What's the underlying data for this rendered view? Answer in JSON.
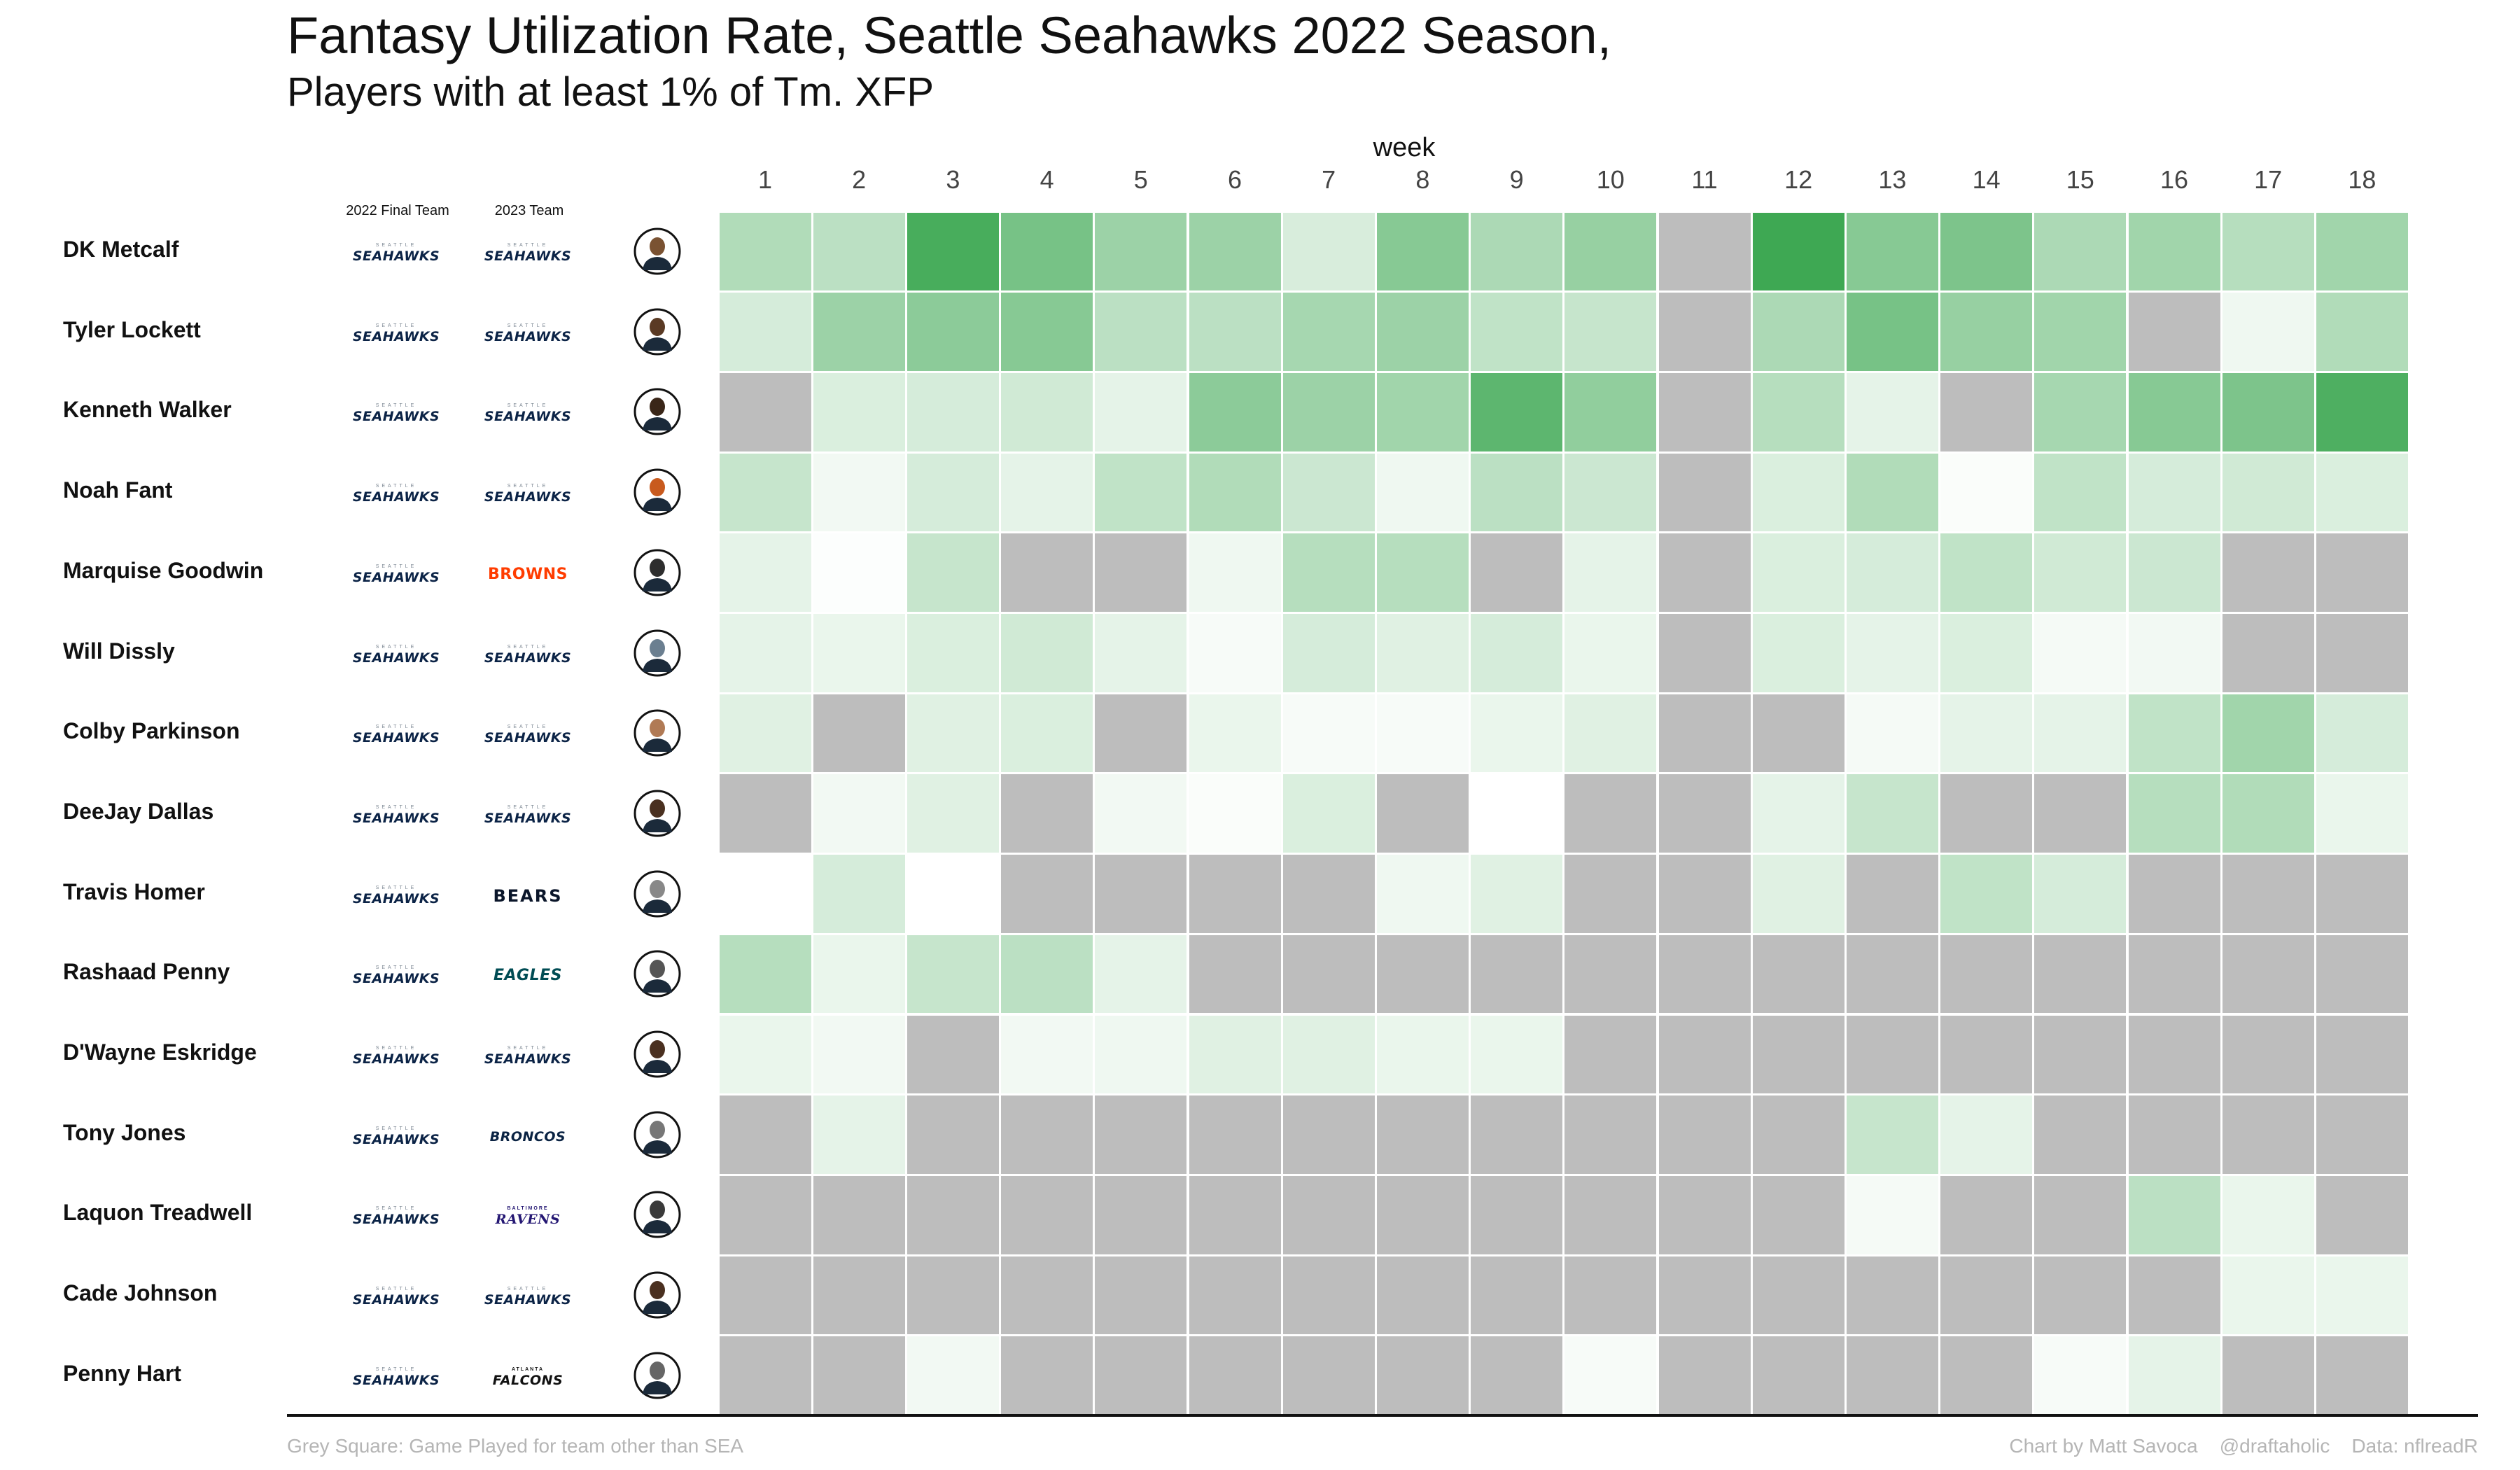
{
  "title": "Fantasy Utilization Rate, Seattle Seahawks 2022 Season,",
  "subtitle": "Players with at least 1% of Tm. XFP",
  "columns": {
    "final_team": "2022 Final Team",
    "team_2023": "2023 Team"
  },
  "footer": {
    "left": "Grey Square: Game Played for team other than SEA",
    "credit": "Chart by Matt Savoca",
    "handle": "@draftaholic",
    "source": "Data: nflreadR"
  },
  "colors": {
    "missing": "#bdbdbd",
    "low": "#ffffff",
    "high": "#3ea853"
  },
  "team_logos": {
    "SEA": {
      "small": "SEATTLE",
      "main": "SEAHAWKS",
      "color": "#0b2346"
    },
    "CLE": {
      "small": "",
      "main": "BROWNS",
      "color": "#ff3c00"
    },
    "CHI": {
      "small": "",
      "main": "BEARS",
      "color": "#0b162a"
    },
    "PHI": {
      "small": "",
      "main": "EAGLES",
      "color": "#004c54"
    },
    "DEN": {
      "small": "",
      "main": "BRONCOS",
      "color": "#0a2343"
    },
    "BAL": {
      "small": "BALTIMORE",
      "main": "RAVENS",
      "color": "#241773"
    },
    "ATL": {
      "small": "ATLANTA",
      "main": "FALCONS",
      "color": "#111111"
    }
  },
  "chart_data": {
    "type": "heatmap",
    "x_label": "week",
    "weeks": [
      "1",
      "2",
      "3",
      "4",
      "5",
      "6",
      "7",
      "8",
      "9",
      "10",
      "11",
      "12",
      "13",
      "14",
      "15",
      "16",
      "17",
      "18"
    ],
    "note": "Grey Square: Game Played for team other than SEA",
    "players": [
      {
        "name": "DK Metcalf",
        "final_team": "SEA",
        "team_2023": "SEA",
        "headshot_color": "#7a5232",
        "values": [
          0.3,
          0.26,
          0.7,
          0.52,
          0.38,
          0.38,
          0.15,
          0.46,
          0.32,
          0.4,
          null,
          0.74,
          0.46,
          0.5,
          0.32,
          0.36,
          0.28,
          0.36
        ]
      },
      {
        "name": "Tyler Lockett",
        "final_team": "SEA",
        "team_2023": "SEA",
        "headshot_color": "#5a3a24",
        "values": [
          0.16,
          0.38,
          0.44,
          0.46,
          0.26,
          0.26,
          0.34,
          0.38,
          0.24,
          0.22,
          null,
          0.32,
          0.52,
          0.4,
          0.36,
          null,
          0.06,
          0.3
        ]
      },
      {
        "name": "Kenneth Walker",
        "final_team": "SEA",
        "team_2023": "SEA",
        "headshot_color": "#3a2618",
        "values": [
          null,
          0.14,
          0.16,
          0.18,
          0.1,
          0.44,
          0.38,
          0.36,
          0.62,
          0.42,
          null,
          0.28,
          0.1,
          null,
          0.34,
          0.46,
          0.5,
          0.68
        ]
      },
      {
        "name": "Noah Fant",
        "final_team": "SEA",
        "team_2023": "SEA",
        "headshot_color": "#c85a1e",
        "values": [
          0.22,
          0.05,
          0.16,
          0.1,
          0.24,
          0.3,
          0.2,
          0.06,
          0.26,
          0.2,
          null,
          0.14,
          0.3,
          0.02,
          0.24,
          0.16,
          0.18,
          0.14
        ]
      },
      {
        "name": "Marquise Goodwin",
        "final_team": "SEA",
        "team_2023": "CLE",
        "headshot_color": "#2e2e2e",
        "values": [
          0.1,
          0.01,
          0.22,
          null,
          null,
          0.06,
          0.28,
          0.28,
          null,
          0.1,
          null,
          0.14,
          0.16,
          0.24,
          0.18,
          0.2,
          null,
          null
        ]
      },
      {
        "name": "Will Dissly",
        "final_team": "SEA",
        "team_2023": "SEA",
        "headshot_color": "#6b7f90",
        "values": [
          0.1,
          0.08,
          0.14,
          0.18,
          0.1,
          0.03,
          0.16,
          0.12,
          0.16,
          0.08,
          null,
          0.14,
          0.1,
          0.14,
          0.04,
          0.05,
          null,
          null
        ]
      },
      {
        "name": "Colby Parkinson",
        "final_team": "SEA",
        "team_2023": "SEA",
        "headshot_color": "#b07a55",
        "values": [
          0.12,
          null,
          0.12,
          0.14,
          null,
          0.08,
          0.03,
          0.03,
          0.08,
          0.12,
          null,
          null,
          0.04,
          0.1,
          0.1,
          0.24,
          0.36,
          0.16
        ]
      },
      {
        "name": "DeeJay Dallas",
        "final_team": "SEA",
        "team_2023": "SEA",
        "headshot_color": "#4a3020",
        "values": [
          null,
          0.05,
          0.12,
          null,
          0.05,
          0.02,
          0.14,
          null,
          0.0,
          null,
          null,
          0.1,
          0.22,
          null,
          null,
          0.28,
          0.3,
          0.08
        ]
      },
      {
        "name": "Travis Homer",
        "final_team": "SEA",
        "team_2023": "CHI",
        "headshot_color": "#888888",
        "values": [
          0.0,
          0.16,
          0.0,
          null,
          null,
          null,
          null,
          0.06,
          0.12,
          null,
          null,
          0.12,
          null,
          0.24,
          0.16,
          null,
          null,
          null
        ]
      },
      {
        "name": "Rashaad Penny",
        "final_team": "SEA",
        "team_2023": "PHI",
        "headshot_color": "#555555",
        "values": [
          0.28,
          0.08,
          0.22,
          0.26,
          0.1,
          null,
          null,
          null,
          null,
          null,
          null,
          null,
          null,
          null,
          null,
          null,
          null,
          null
        ]
      },
      {
        "name": "D'Wayne Eskridge",
        "final_team": "SEA",
        "team_2023": "SEA",
        "headshot_color": "#4a3020",
        "values": [
          0.08,
          0.05,
          null,
          0.05,
          0.06,
          0.12,
          0.12,
          0.08,
          0.08,
          null,
          null,
          null,
          null,
          null,
          null,
          null,
          null,
          null
        ]
      },
      {
        "name": "Tony Jones",
        "final_team": "SEA",
        "team_2023": "DEN",
        "headshot_color": "#777777",
        "values": [
          null,
          0.1,
          null,
          null,
          null,
          null,
          null,
          null,
          null,
          null,
          null,
          null,
          0.22,
          0.1,
          null,
          null,
          null,
          null
        ]
      },
      {
        "name": "Laquon Treadwell",
        "final_team": "SEA",
        "team_2023": "BAL",
        "headshot_color": "#3a3a3a",
        "values": [
          null,
          null,
          null,
          null,
          null,
          null,
          null,
          null,
          null,
          null,
          null,
          null,
          0.04,
          null,
          null,
          0.26,
          0.08,
          null
        ]
      },
      {
        "name": "Cade Johnson",
        "final_team": "SEA",
        "team_2023": "SEA",
        "headshot_color": "#4a3020",
        "values": [
          null,
          null,
          null,
          null,
          null,
          null,
          null,
          null,
          null,
          null,
          null,
          null,
          null,
          null,
          null,
          null,
          0.08,
          0.08
        ]
      },
      {
        "name": "Penny Hart",
        "final_team": "SEA",
        "team_2023": "ATL",
        "headshot_color": "#666666",
        "values": [
          null,
          null,
          0.05,
          null,
          null,
          null,
          null,
          null,
          null,
          0.03,
          null,
          null,
          null,
          null,
          0.03,
          0.1,
          null,
          null
        ]
      }
    ]
  }
}
